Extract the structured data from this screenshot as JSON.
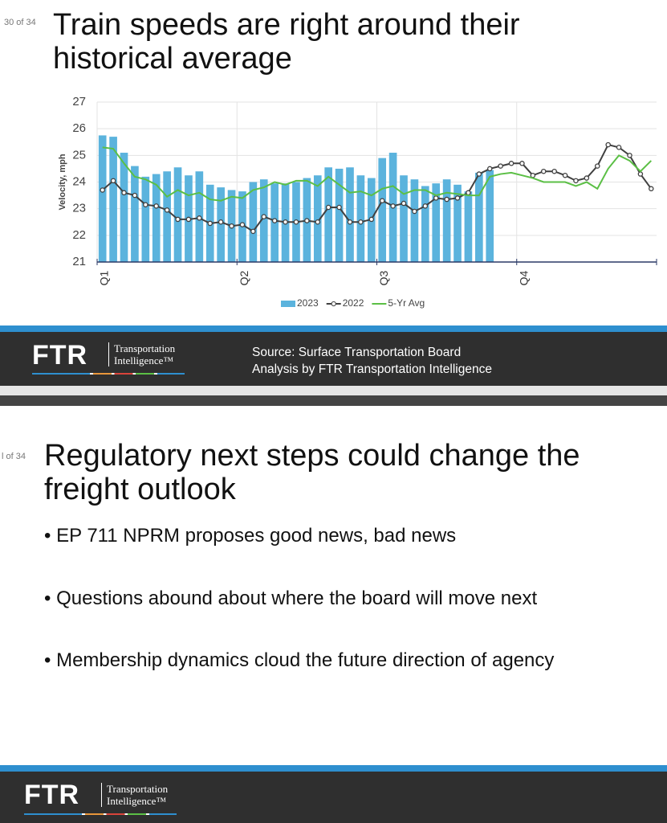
{
  "slides": [
    {
      "page": "30 of 34",
      "title": "Train speeds are right around their historical average",
      "footer": {
        "logo": "FTR",
        "logo_line1": "Transportation",
        "logo_line2": "Intelligence™",
        "source": [
          "Source: Surface Transportation Board",
          "Analysis by FTR Transportation Intelligence"
        ]
      }
    },
    {
      "page": "l of 34",
      "title": "Regulatory next steps could change the freight outlook",
      "bullets": [
        "EP 711 NPRM proposes good news, bad news",
        "Questions abound about where the board will move next",
        "Membership dynamics cloud the future direction of agency"
      ],
      "footer": {
        "logo": "FTR",
        "logo_line1": "Transportation",
        "logo_line2": "Intelligence™"
      }
    }
  ],
  "chart_data": {
    "type": "bar",
    "y_label": "Velocity, mph",
    "categories": [
      "Q1",
      null,
      null,
      null,
      null,
      null,
      null,
      null,
      null,
      null,
      null,
      null,
      null,
      "Q2",
      null,
      null,
      null,
      null,
      null,
      null,
      null,
      null,
      null,
      null,
      null,
      null,
      "Q3",
      null,
      null,
      null,
      null,
      null,
      null,
      null,
      null,
      null,
      null,
      null,
      null,
      "Q4",
      null,
      null,
      null,
      null,
      null,
      null,
      null,
      null,
      null,
      null,
      null,
      null
    ],
    "series": [
      {
        "name": "2023",
        "type": "bar",
        "color": "#5bb3dd",
        "values": [
          25.75,
          25.7,
          25.1,
          24.6,
          24.2,
          24.3,
          24.4,
          24.55,
          24.25,
          24.4,
          23.9,
          23.8,
          23.7,
          23.65,
          24.0,
          24.1,
          23.95,
          23.95,
          24.0,
          24.15,
          24.25,
          24.55,
          24.5,
          24.55,
          24.25,
          24.15,
          24.9,
          25.1,
          24.25,
          24.1,
          23.85,
          23.95,
          24.1,
          23.9,
          23.65,
          24.35,
          24.45,
          null,
          null,
          null,
          null,
          null,
          null,
          null,
          null,
          null,
          null,
          null,
          null,
          null,
          null,
          null
        ]
      },
      {
        "name": "2022",
        "type": "line",
        "color": "#404040",
        "markers": true,
        "values": [
          23.7,
          24.05,
          23.6,
          23.5,
          23.15,
          23.1,
          22.95,
          22.6,
          22.6,
          22.65,
          22.45,
          22.5,
          22.35,
          22.4,
          22.15,
          22.7,
          22.55,
          22.5,
          22.5,
          22.55,
          22.5,
          23.05,
          23.05,
          22.5,
          22.5,
          22.6,
          23.3,
          23.1,
          23.2,
          22.9,
          23.1,
          23.4,
          23.35,
          23.4,
          23.6,
          24.3,
          24.5,
          24.6,
          24.7,
          24.7,
          24.25,
          24.4,
          24.4,
          24.25,
          24.05,
          24.15,
          24.6,
          25.4,
          25.3,
          25.0,
          24.3,
          23.75
        ]
      },
      {
        "name": "5-Yr Avg",
        "type": "line",
        "color": "#5bbf45",
        "markers": false,
        "values": [
          25.3,
          25.25,
          24.7,
          24.2,
          24.1,
          23.9,
          23.45,
          23.7,
          23.5,
          23.6,
          23.35,
          23.3,
          23.45,
          23.4,
          23.7,
          23.8,
          24.0,
          23.9,
          24.05,
          24.05,
          23.85,
          24.2,
          23.9,
          23.6,
          23.65,
          23.5,
          23.75,
          23.85,
          23.55,
          23.7,
          23.7,
          23.5,
          23.6,
          23.55,
          23.5,
          23.5,
          24.2,
          24.3,
          24.35,
          24.25,
          24.15,
          24.0,
          24.0,
          24.0,
          23.85,
          24.0,
          23.75,
          24.5,
          25.0,
          24.8,
          24.4,
          24.8
        ]
      }
    ],
    "ylim": [
      21,
      27
    ],
    "yticks": [
      21,
      22,
      23,
      24,
      25,
      26,
      27
    ],
    "grid": true,
    "legend": "bottom"
  }
}
